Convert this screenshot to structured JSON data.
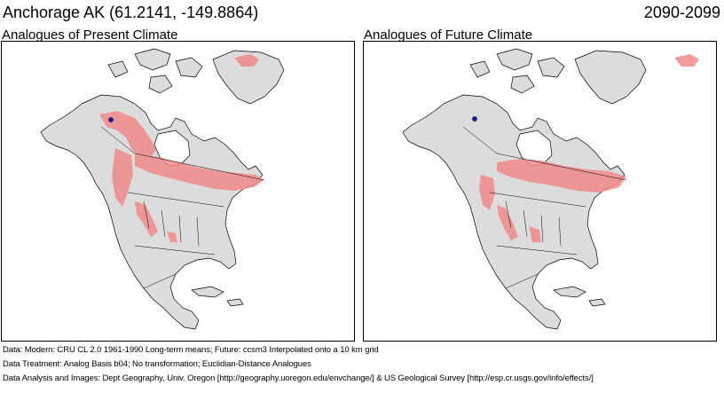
{
  "header": {
    "location_title": "Anchorage AK  (61.2141, -149.8864)",
    "period": "2090-2099"
  },
  "panels": [
    {
      "title": "Analogues of Present Climate"
    },
    {
      "title": "Analogues of Future Climate"
    }
  ],
  "footer": {
    "data_line": "Data:  Modern: CRU CL 2.0 1961-1990 Long-term means; Future: ccsm3 Interpolated onto a 10 km grid",
    "treatment_line": "Data Treatment:  Analog Basis b04; No transformation; Euclidian-Distance Analogues",
    "analysis_line": "Data Analysis and Images:  Dept Geography, Univ. Oregon [http://geography.uoregon.edu/envchange/] & US Geological Survey [http://esp.cr.usgs.gov/info/effects/]"
  },
  "colors": {
    "analogue_fill": "#f08a8a",
    "land": "#dcdcdc",
    "ocean": "#ffffff",
    "site_marker": "#1a1ab0",
    "borders": "#000000"
  }
}
